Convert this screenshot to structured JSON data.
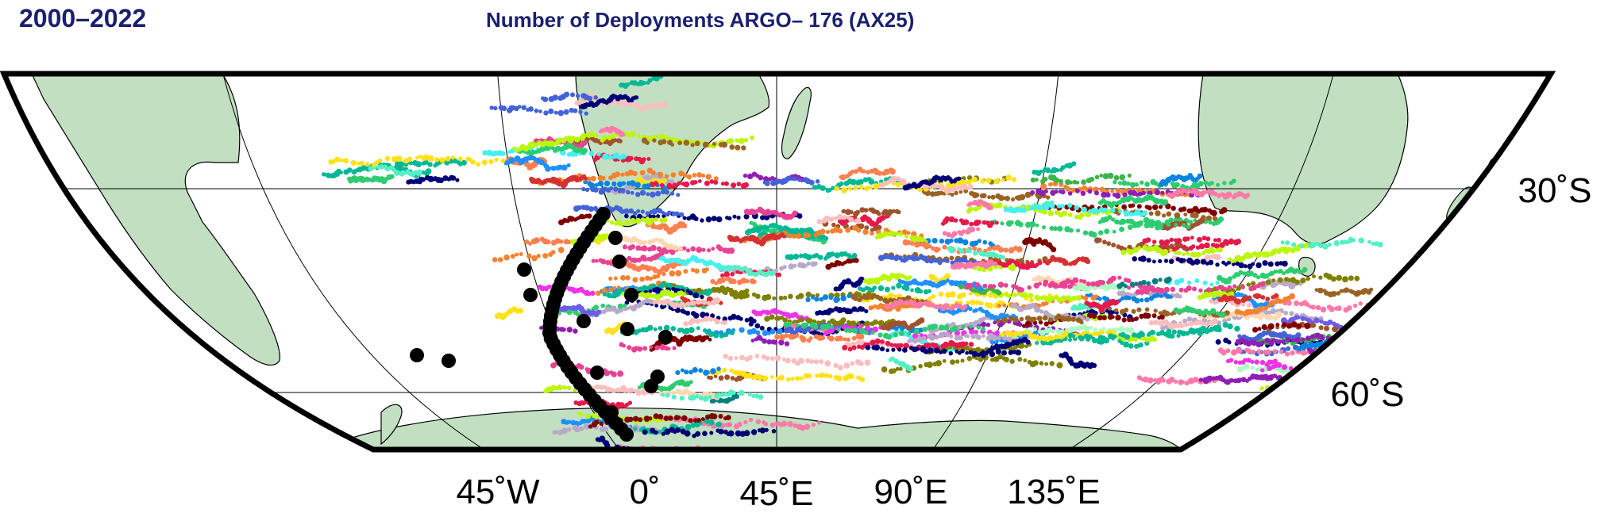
{
  "header": {
    "period": "2000–2022",
    "title": "Number of Deployments ARGO– 176 (AX25)"
  },
  "map": {
    "colors": {
      "land": "#c2dfc2",
      "ocean": "#ffffff",
      "deployment_marker": "#000000",
      "title": "#1b1f70"
    },
    "graticule": {
      "latitudes": [
        "30˚S",
        "60˚S"
      ],
      "longitudes": [
        "45˚W",
        "0˚",
        "45˚E",
        "90˚E",
        "135˚E"
      ]
    },
    "landmasses": [
      "south-america",
      "africa",
      "madagascar",
      "australia",
      "antarctica"
    ],
    "float_palette": [
      "#e6194b",
      "#3cb44b",
      "#ffe119",
      "#4363d8",
      "#f58231",
      "#911eb4",
      "#46f0f0",
      "#f032e6",
      "#bcf60c",
      "#fabebe",
      "#008080",
      "#e6beff",
      "#9a6324",
      "#800000",
      "#aaffc3",
      "#808000",
      "#ffd8b1",
      "#000075",
      "#2ecc71",
      "#e84393",
      "#00b894",
      "#fd79a8",
      "#6c5ce7",
      "#d63031",
      "#0984e3",
      "#b8a9c9",
      "#55efc4",
      "#a0522d",
      "#ff7f50",
      "#1e90ff"
    ],
    "deployment_track_points": 40,
    "outlier_deployments": 14
  }
}
